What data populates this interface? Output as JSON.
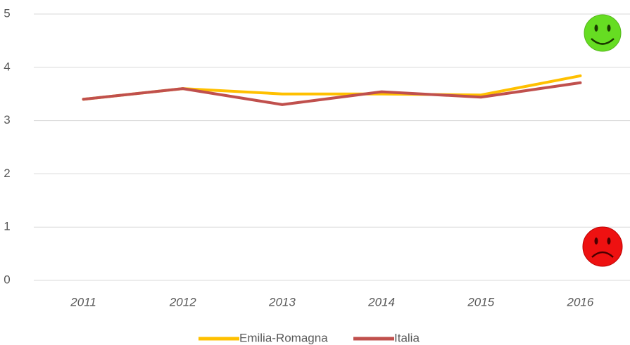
{
  "chart_data": {
    "type": "line",
    "categories": [
      "2011",
      "2012",
      "2013",
      "2014",
      "2015",
      "2016"
    ],
    "series": [
      {
        "name": "Emilia-Romagna",
        "color": "#ffc000",
        "values": [
          3.4,
          3.6,
          3.5,
          3.5,
          3.48,
          3.84
        ]
      },
      {
        "name": "Italia",
        "color": "#c0504d",
        "values": [
          3.4,
          3.6,
          3.3,
          3.54,
          3.44,
          3.71
        ]
      }
    ],
    "ylim": [
      0,
      5
    ],
    "yticks": [
      0,
      1,
      2,
      3,
      4,
      5
    ],
    "grid": true,
    "legend": "bottom"
  }
}
